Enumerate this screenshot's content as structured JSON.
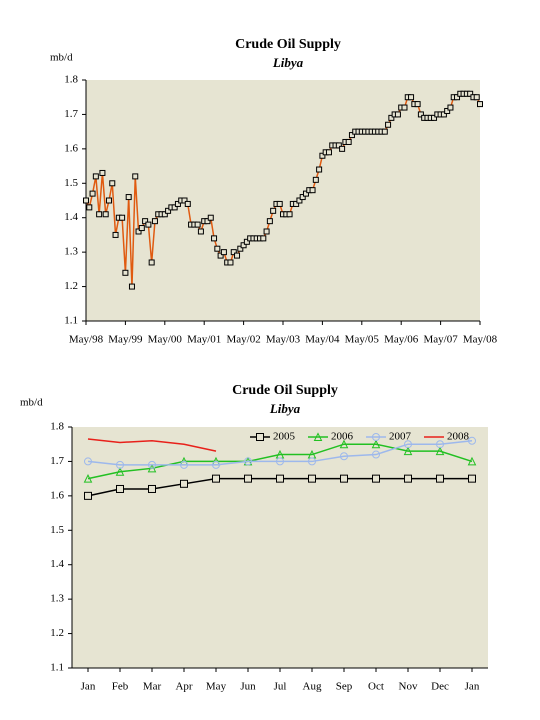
{
  "chart_data": [
    {
      "type": "line",
      "title": "Crude Oil Supply",
      "subtitle": "Libya",
      "y_label": "mb/d",
      "categories": [
        "May/98",
        null,
        null,
        null,
        null,
        null,
        null,
        null,
        null,
        null,
        null,
        null,
        "May/99",
        null,
        null,
        null,
        null,
        null,
        null,
        null,
        null,
        null,
        null,
        null,
        "May/00",
        null,
        null,
        null,
        null,
        null,
        null,
        null,
        null,
        null,
        null,
        null,
        "May/01",
        null,
        null,
        null,
        null,
        null,
        null,
        null,
        null,
        null,
        null,
        null,
        "May/02",
        null,
        null,
        null,
        null,
        null,
        null,
        null,
        null,
        null,
        null,
        null,
        "May/03",
        null,
        null,
        null,
        null,
        null,
        null,
        null,
        null,
        null,
        null,
        null,
        "May/04",
        null,
        null,
        null,
        null,
        null,
        null,
        null,
        null,
        null,
        null,
        null,
        "May/05",
        null,
        null,
        null,
        null,
        null,
        null,
        null,
        null,
        null,
        null,
        null,
        "May/06",
        null,
        null,
        null,
        null,
        null,
        null,
        null,
        null,
        null,
        null,
        null,
        "May/07",
        null,
        null,
        null,
        null,
        null,
        null,
        null,
        null,
        null,
        null,
        null,
        "May/08"
      ],
      "values": [
        1.45,
        1.43,
        1.47,
        1.52,
        1.41,
        1.53,
        1.41,
        1.45,
        1.5,
        1.35,
        1.4,
        1.4,
        1.24,
        1.46,
        1.2,
        1.52,
        1.36,
        1.37,
        1.39,
        1.38,
        1.27,
        1.39,
        1.41,
        1.41,
        1.41,
        1.42,
        1.43,
        1.43,
        1.44,
        1.45,
        1.45,
        1.44,
        1.38,
        1.38,
        1.38,
        1.36,
        1.39,
        1.39,
        1.4,
        1.34,
        1.31,
        1.29,
        1.3,
        1.27,
        1.27,
        1.3,
        1.29,
        1.31,
        1.32,
        1.33,
        1.34,
        1.34,
        1.34,
        1.34,
        1.34,
        1.36,
        1.39,
        1.42,
        1.44,
        1.44,
        1.41,
        1.41,
        1.41,
        1.44,
        1.44,
        1.45,
        1.46,
        1.47,
        1.48,
        1.48,
        1.51,
        1.54,
        1.58,
        1.59,
        1.59,
        1.61,
        1.61,
        1.61,
        1.6,
        1.62,
        1.62,
        1.64,
        1.65,
        1.65,
        1.65,
        1.65,
        1.65,
        1.65,
        1.65,
        1.65,
        1.65,
        1.65,
        1.67,
        1.69,
        1.7,
        1.7,
        1.72,
        1.72,
        1.75,
        1.75,
        1.73,
        1.73,
        1.7,
        1.69,
        1.69,
        1.69,
        1.69,
        1.7,
        1.7,
        1.7,
        1.71,
        1.72,
        1.75,
        1.75,
        1.76,
        1.76,
        1.76,
        1.76,
        1.75,
        1.75,
        1.73
      ],
      "color": "#e05a10",
      "marker": "square",
      "marker_color": "#000000",
      "ylim": [
        1.1,
        1.8
      ],
      "yticks": [
        1.1,
        1.2,
        1.3,
        1.4,
        1.5,
        1.6,
        1.7,
        1.8
      ],
      "grid": false,
      "background": "#e6e4d2"
    },
    {
      "type": "line",
      "title": "Crude Oil Supply",
      "subtitle": "Libya",
      "y_label": "mb/d",
      "categories": [
        "Jan",
        "Feb",
        "Mar",
        "Apr",
        "May",
        "Jun",
        "Jul",
        "Aug",
        "Sep",
        "Oct",
        "Nov",
        "Dec",
        "Jan"
      ],
      "series": [
        {
          "name": "2005",
          "color": "#000000",
          "marker": "square",
          "values": [
            1.6,
            1.62,
            1.62,
            1.635,
            1.65,
            1.65,
            1.65,
            1.65,
            1.65,
            1.65,
            1.65,
            1.65,
            1.65
          ]
        },
        {
          "name": "2006",
          "color": "#22c022",
          "marker": "triangle",
          "values": [
            1.65,
            1.67,
            1.68,
            1.7,
            1.7,
            1.7,
            1.72,
            1.72,
            1.75,
            1.75,
            1.73,
            1.73,
            1.7
          ]
        },
        {
          "name": "2007",
          "color": "#9db8ec",
          "marker": "circle",
          "values": [
            1.7,
            1.69,
            1.69,
            1.69,
            1.69,
            1.7,
            1.7,
            1.7,
            1.715,
            1.72,
            1.75,
            1.75,
            1.76
          ]
        },
        {
          "name": "2008",
          "color": "#e8201a",
          "marker": "none",
          "values": [
            1.765,
            1.755,
            1.76,
            1.75,
            1.73,
            null,
            null,
            null,
            null,
            null,
            null,
            null,
            null
          ]
        }
      ],
      "ylim": [
        1.1,
        1.8
      ],
      "yticks": [
        1.1,
        1.2,
        1.3,
        1.4,
        1.5,
        1.6,
        1.7,
        1.8
      ],
      "grid": false,
      "legend": "upper right",
      "background": "#e6e4d2"
    }
  ]
}
